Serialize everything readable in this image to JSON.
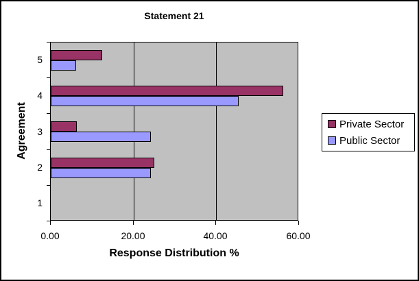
{
  "chart_data": {
    "type": "bar",
    "orientation": "horizontal",
    "title": "Statement 21",
    "xlabel": "Response Distribution %",
    "ylabel": "Agreement",
    "categories": [
      "1",
      "2",
      "3",
      "4",
      "5"
    ],
    "series": [
      {
        "name": "Private Sector",
        "color": "#993366",
        "values": [
          0,
          25,
          6.25,
          56.25,
          12.5
        ]
      },
      {
        "name": "Public Sector",
        "color": "#9999ff",
        "values": [
          0,
          24.24,
          24.24,
          45.45,
          6.06
        ]
      }
    ],
    "xlim": [
      0,
      60
    ],
    "x_ticks": [
      "0.00",
      "20.00",
      "40.00",
      "60.00"
    ],
    "x_tick_values": [
      0,
      20,
      40,
      60
    ],
    "gridline_values": [
      20,
      40
    ],
    "grid": true,
    "legend_position": "right",
    "plot_background": "#c0c0c0",
    "bar_border_color": "#000000"
  },
  "legend": {
    "items": [
      {
        "label": "Private Sector",
        "color": "#993366"
      },
      {
        "label": "Public Sector",
        "color": "#9999ff"
      }
    ]
  }
}
